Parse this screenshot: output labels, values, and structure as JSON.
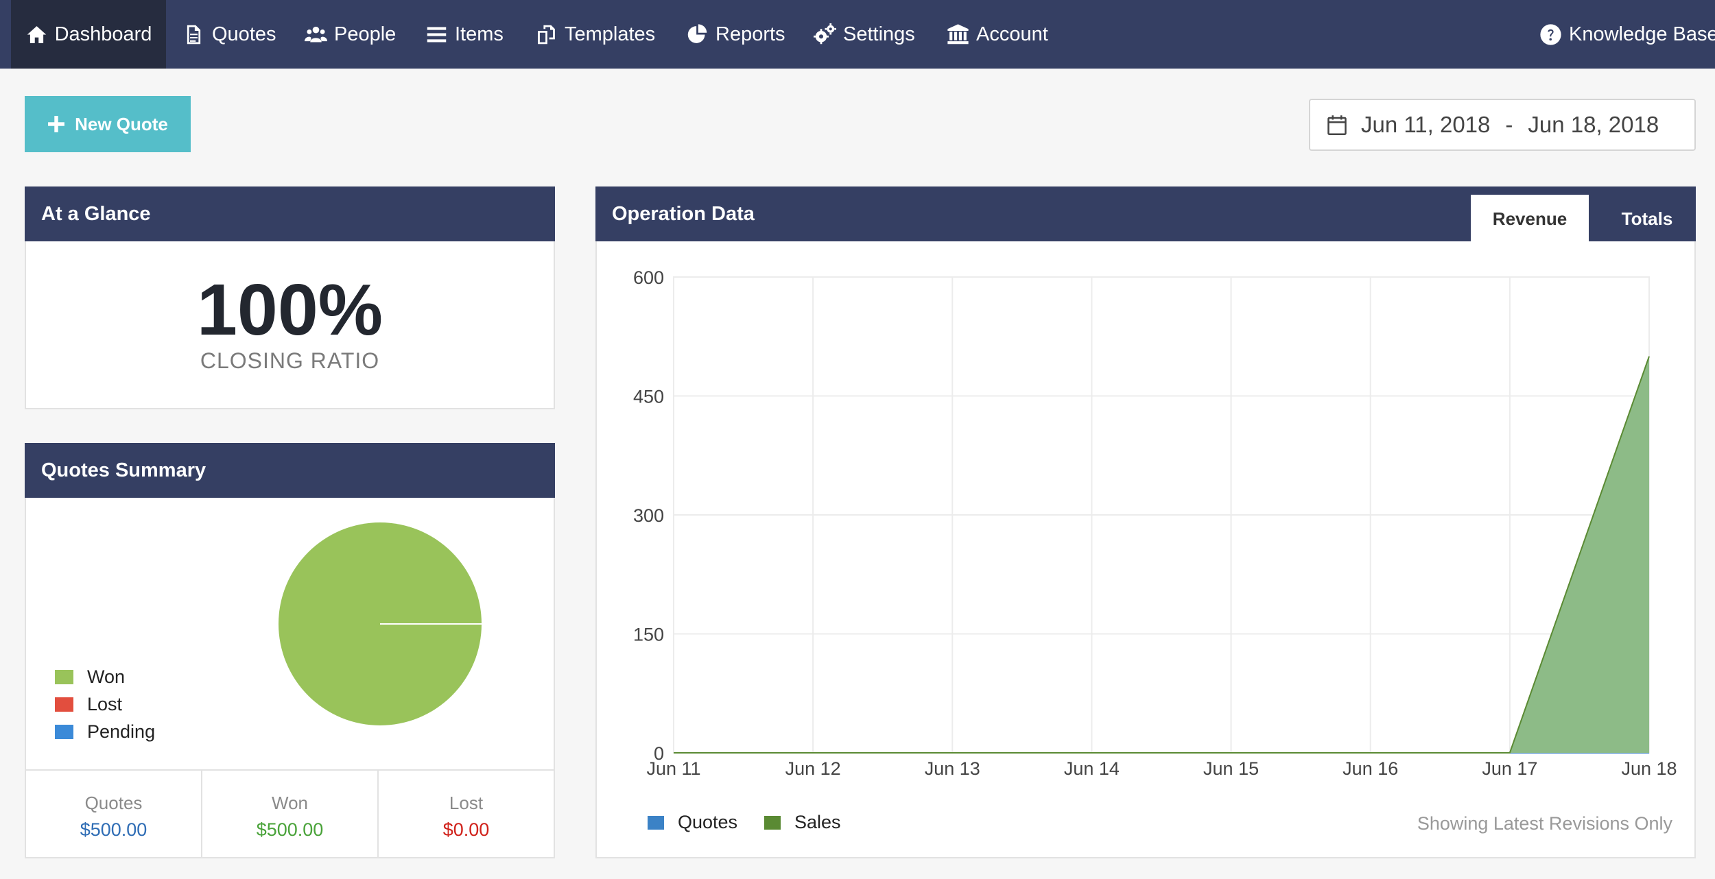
{
  "nav": {
    "items": [
      {
        "label": "Dashboard",
        "icon": "home-icon",
        "active": true
      },
      {
        "label": "Quotes",
        "icon": "document-icon"
      },
      {
        "label": "People",
        "icon": "people-icon"
      },
      {
        "label": "Items",
        "icon": "list-icon"
      },
      {
        "label": "Templates",
        "icon": "templates-icon"
      },
      {
        "label": "Reports",
        "icon": "pie-chart-icon"
      },
      {
        "label": "Settings",
        "icon": "gears-icon"
      },
      {
        "label": "Account",
        "icon": "bank-icon"
      }
    ],
    "help": {
      "label": "Knowledge Base",
      "icon": "question-circle-icon"
    }
  },
  "toolbar": {
    "new_quote_label": "New Quote"
  },
  "date_range": {
    "start": "Jun 11, 2018",
    "separator": "-",
    "end": "Jun 18, 2018"
  },
  "glance": {
    "title": "At a Glance",
    "value": "100%",
    "label": "CLOSING RATIO"
  },
  "summary": {
    "title": "Quotes Summary",
    "legend": [
      {
        "label": "Won",
        "color": "#99c35a"
      },
      {
        "label": "Lost",
        "color": "#e24e3e"
      },
      {
        "label": "Pending",
        "color": "#3b8ad8"
      }
    ],
    "totals": [
      {
        "label": "Quotes",
        "value": "$500.00",
        "color": "#2f6db5"
      },
      {
        "label": "Won",
        "value": "$500.00",
        "color": "#4aa33a"
      },
      {
        "label": "Lost",
        "value": "$0.00",
        "color": "#d0221b"
      }
    ]
  },
  "operation": {
    "title": "Operation Data",
    "tabs": [
      {
        "label": "Revenue",
        "active": true
      },
      {
        "label": "Totals",
        "active": false
      }
    ],
    "legend": [
      {
        "label": "Quotes",
        "color": "#3b82c6"
      },
      {
        "label": "Sales",
        "color": "#5a8a33"
      }
    ],
    "footnote": "Showing Latest Revisions Only"
  },
  "chart_data": [
    {
      "type": "pie",
      "labels": [
        "Won",
        "Lost",
        "Pending"
      ],
      "values": [
        500,
        0,
        0
      ],
      "colors": [
        "#99c35a",
        "#e24e3e",
        "#3b8ad8"
      ]
    },
    {
      "type": "area",
      "categories": [
        "Jun 11",
        "Jun 12",
        "Jun 13",
        "Jun 14",
        "Jun 15",
        "Jun 16",
        "Jun 17",
        "Jun 18"
      ],
      "series": [
        {
          "name": "Quotes",
          "values": [
            0,
            0,
            0,
            0,
            0,
            0,
            0,
            0
          ],
          "color": "#3b82c6"
        },
        {
          "name": "Sales",
          "values": [
            0,
            0,
            0,
            0,
            0,
            0,
            0,
            500
          ],
          "color": "#5a8a33",
          "fill": "#8dbb87"
        }
      ],
      "yticks": [
        0,
        150,
        300,
        450,
        600
      ],
      "ylim": [
        0,
        600
      ],
      "grid": true,
      "legend": "bottom-left"
    }
  ]
}
